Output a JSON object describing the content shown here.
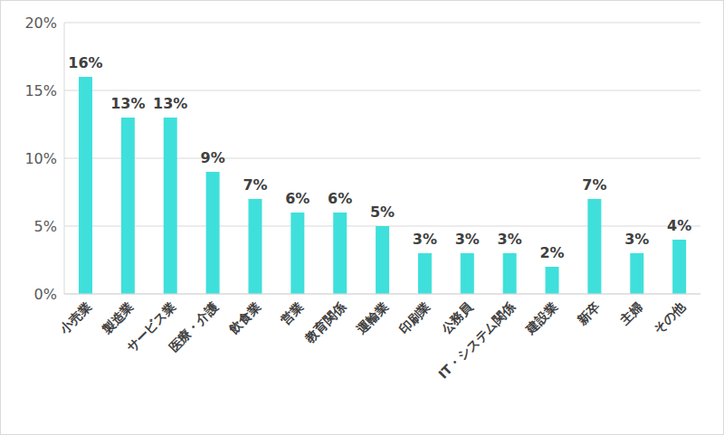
{
  "chart_data": {
    "type": "bar",
    "categories": [
      "小売業",
      "製造業",
      "サービス業",
      "医療・介護",
      "飲食業",
      "営業",
      "教育関係",
      "運輸業",
      "印刷業",
      "公務員",
      "IT・システム関係",
      "建設業",
      "新卒",
      "主婦",
      "その他"
    ],
    "values": [
      16,
      13,
      13,
      9,
      7,
      6,
      6,
      5,
      3,
      3,
      3,
      2,
      7,
      3,
      4
    ],
    "value_labels": [
      "16%",
      "13%",
      "13%",
      "9%",
      "7%",
      "6%",
      "6%",
      "5%",
      "3%",
      "3%",
      "3%",
      "2%",
      "7%",
      "3%",
      "4%"
    ],
    "color": "#3fe0db",
    "ylim": [
      0,
      20
    ],
    "yticks": [
      {
        "value": 0,
        "label": "0%"
      },
      {
        "value": 5,
        "label": "5%"
      },
      {
        "value": 10,
        "label": "10%"
      },
      {
        "value": 15,
        "label": "15%"
      },
      {
        "value": 20,
        "label": "20%"
      }
    ],
    "grid": true,
    "data_labels": true
  }
}
